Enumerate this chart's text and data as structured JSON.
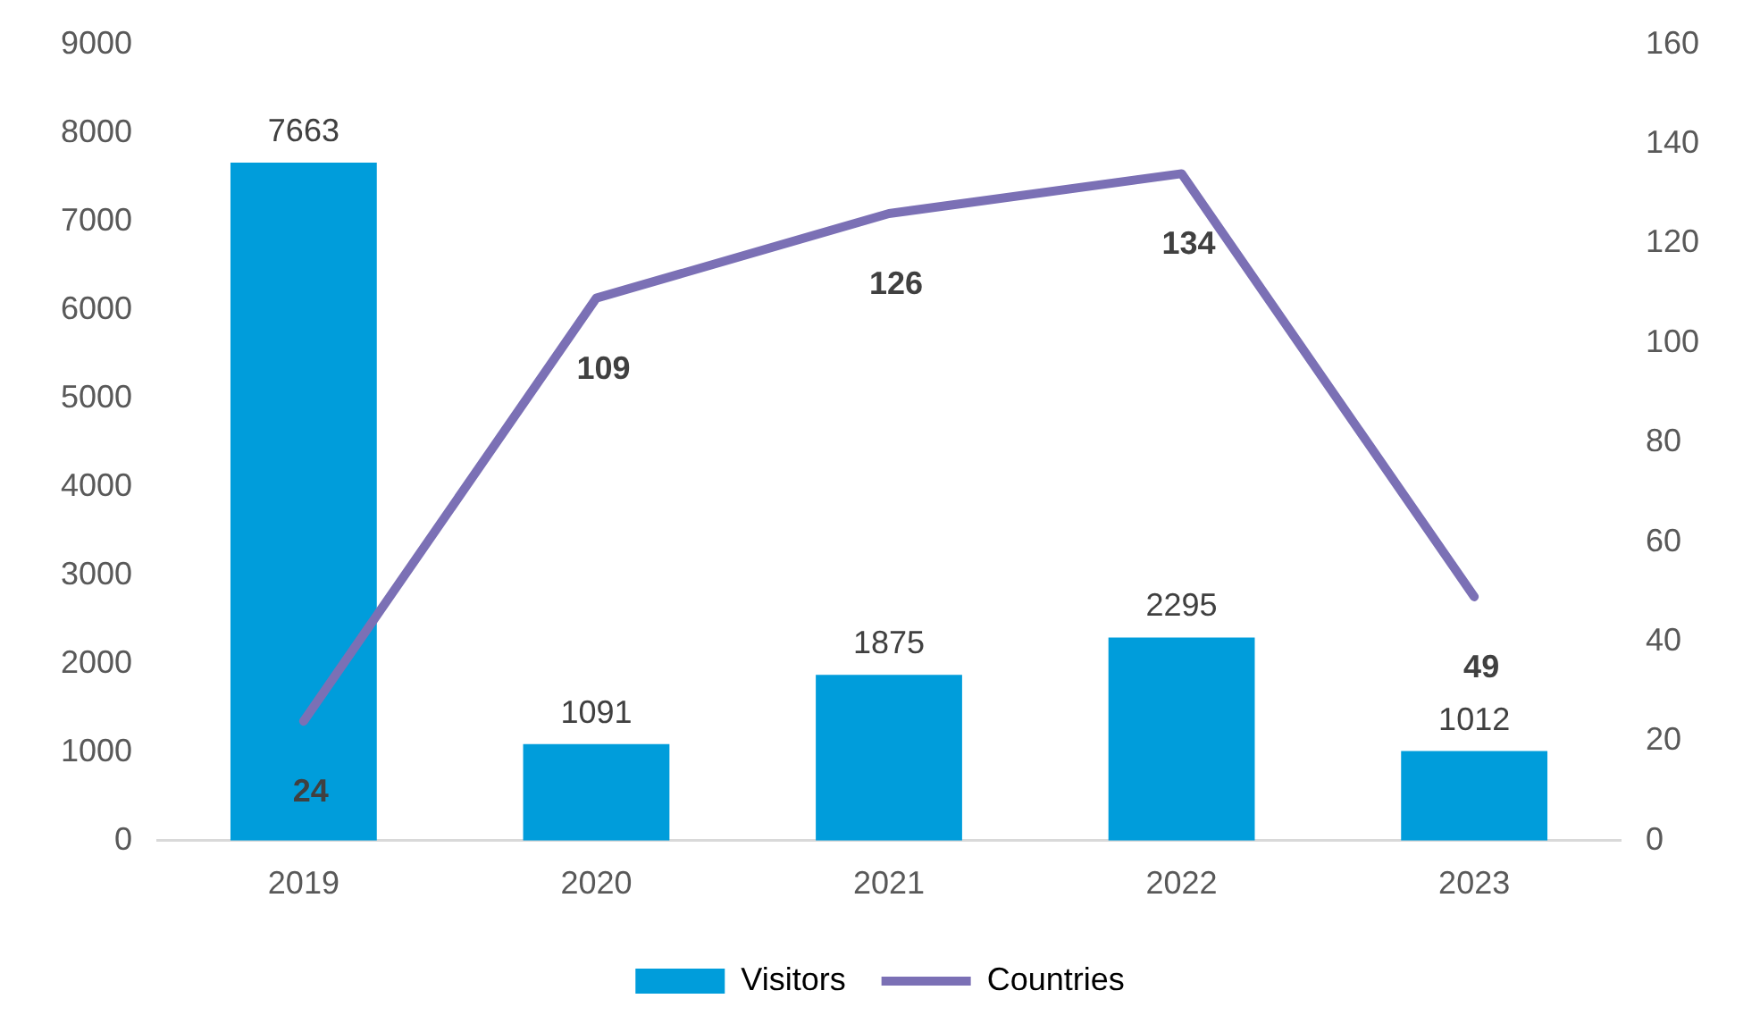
{
  "chart_data": {
    "type": "bar",
    "categories": [
      "2019",
      "2020",
      "2021",
      "2022",
      "2023"
    ],
    "series": [
      {
        "name": "Visitors",
        "color": "#009ddb",
        "values": [
          7663,
          1091,
          1875,
          2295,
          1012
        ]
      },
      {
        "name": "Countries",
        "type": "line",
        "axis": "y2",
        "color": "#7b70b5",
        "values": [
          24,
          109,
          126,
          134,
          49
        ]
      }
    ],
    "ylim": [
      0,
      9000
    ],
    "yticks": [
      0,
      1000,
      2000,
      3000,
      4000,
      5000,
      6000,
      7000,
      8000,
      9000
    ],
    "y2lim": [
      0,
      160
    ],
    "y2ticks": [
      0,
      20,
      40,
      60,
      80,
      100,
      120,
      140,
      160
    ],
    "data_labels": true,
    "legend": "bottom",
    "grid": false,
    "marker": "none"
  }
}
